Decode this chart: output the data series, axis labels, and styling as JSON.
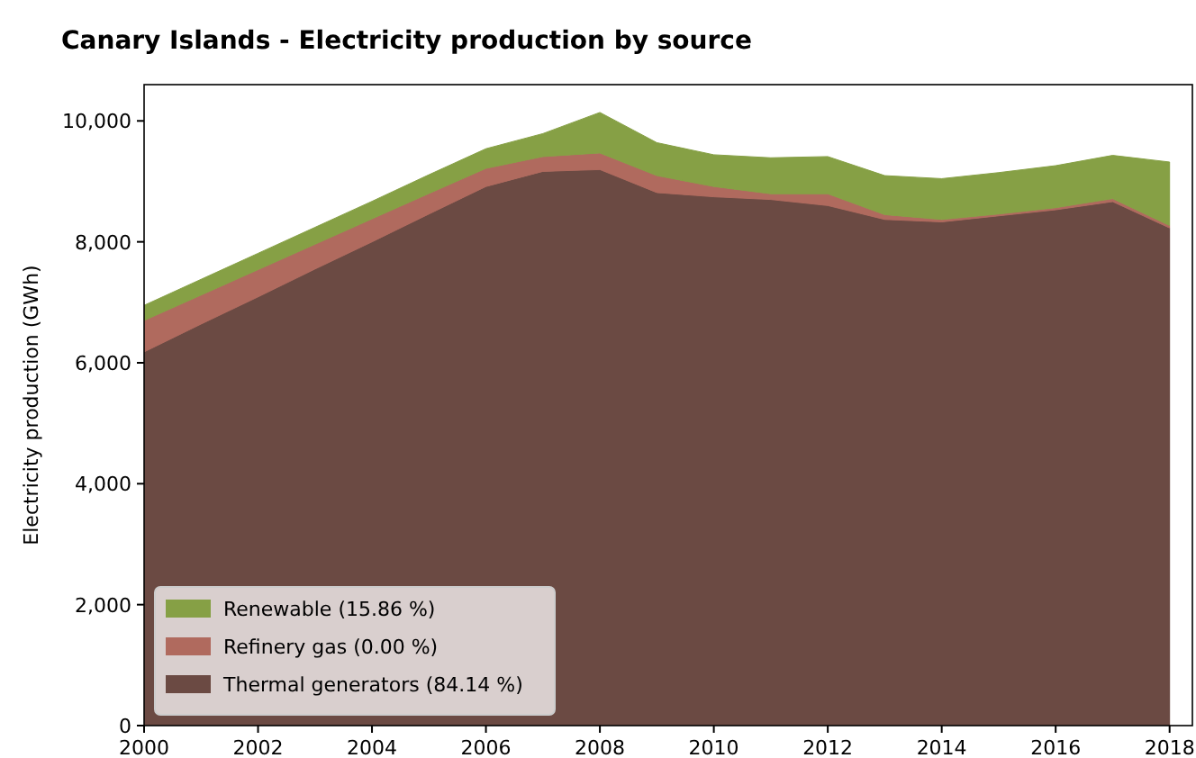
{
  "chart_data": {
    "type": "area",
    "stacked": true,
    "title": "Canary Islands - Electricity production by source",
    "ylabel": "Electricity production (GWh)",
    "x": [
      2000,
      2001,
      2002,
      2003,
      2004,
      2005,
      2006,
      2007,
      2008,
      2009,
      2010,
      2011,
      2012,
      2013,
      2014,
      2015,
      2016,
      2017,
      2018
    ],
    "series": [
      {
        "name": "Thermal generators (84.14 %)",
        "color": "#6b4a43",
        "values": [
          6180,
          6640,
          7090,
          7550,
          8000,
          8460,
          8915,
          9165,
          9195,
          8815,
          8745,
          8700,
          8600,
          8370,
          8330,
          8430,
          8530,
          8665,
          8230
        ]
      },
      {
        "name": "Refinery gas (0.00 %)",
        "color": "#b06a5e",
        "values": [
          520,
          480,
          450,
          410,
          380,
          340,
          300,
          245,
          275,
          280,
          170,
          95,
          195,
          80,
          40,
          30,
          35,
          50,
          40
        ]
      },
      {
        "name": "Renewable (15.86 %)",
        "color": "#86a045",
        "values": [
          250,
          260,
          270,
          280,
          290,
          310,
          325,
          380,
          670,
          545,
          525,
          595,
          615,
          645,
          675,
          685,
          695,
          715,
          1050
        ]
      }
    ],
    "xlim": [
      2000,
      2018.4
    ],
    "xticks": [
      2000,
      2002,
      2004,
      2006,
      2008,
      2010,
      2012,
      2014,
      2016,
      2018
    ],
    "ylim": [
      0,
      10600
    ],
    "yticks": [
      0,
      {
        "value": 2000,
        "label": "2,000"
      },
      {
        "value": 4000,
        "label": "4,000"
      },
      {
        "value": 6000,
        "label": "6,000"
      },
      {
        "value": 8000,
        "label": "8,000"
      },
      {
        "value": 10000,
        "label": "10,000"
      }
    ],
    "grid": false,
    "legend": "bottom left"
  }
}
